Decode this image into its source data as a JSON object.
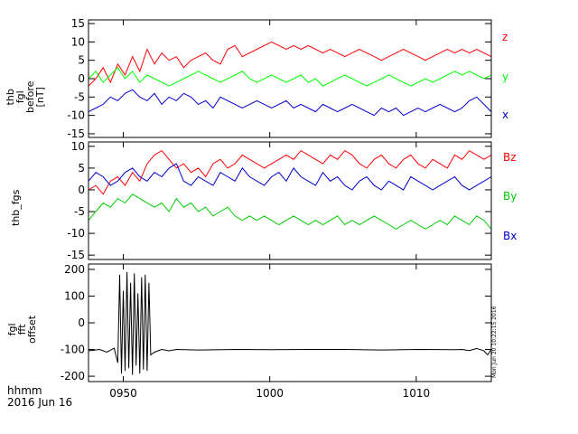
{
  "chart_data": [
    {
      "type": "line",
      "ylabel_lines": [
        "thb",
        "fgl",
        "before",
        "[nT]"
      ],
      "xlim": [
        0,
        110
      ],
      "ylim": [
        -16,
        16
      ],
      "yticks": [
        -15,
        -10,
        -5,
        0,
        5,
        10,
        15
      ],
      "series": [
        {
          "name": "z",
          "color": "#ff0000",
          "x": [
            0,
            2,
            4,
            6,
            8,
            10,
            12,
            14,
            16,
            18,
            20,
            22,
            24,
            26,
            28,
            30,
            32,
            34,
            36,
            38,
            40,
            42,
            44,
            46,
            48,
            50,
            52,
            54,
            56,
            58,
            60,
            62,
            64,
            66,
            68,
            70,
            72,
            74,
            76,
            78,
            80,
            82,
            84,
            86,
            88,
            90,
            92,
            94,
            96,
            98,
            100,
            102,
            104,
            106,
            108,
            110
          ],
          "values": [
            -2,
            0,
            3,
            -1,
            4,
            1,
            6,
            2,
            8,
            4,
            7,
            5,
            6,
            3,
            5,
            6,
            7,
            5,
            4,
            8,
            9,
            6,
            7,
            8,
            9,
            10,
            9,
            8,
            9,
            8,
            9,
            8,
            7,
            8,
            7,
            6,
            7,
            8,
            7,
            6,
            5,
            6,
            7,
            8,
            7,
            6,
            5,
            6,
            7,
            8,
            7,
            8,
            7,
            8,
            7,
            6
          ]
        },
        {
          "name": "y",
          "color": "#00ff00",
          "x": [
            0,
            2,
            4,
            6,
            8,
            10,
            12,
            14,
            16,
            18,
            20,
            22,
            24,
            26,
            28,
            30,
            32,
            34,
            36,
            38,
            40,
            42,
            44,
            46,
            48,
            50,
            52,
            54,
            56,
            58,
            60,
            62,
            64,
            66,
            68,
            70,
            72,
            74,
            76,
            78,
            80,
            82,
            84,
            86,
            88,
            90,
            92,
            94,
            96,
            98,
            100,
            102,
            104,
            106,
            108,
            110
          ],
          "values": [
            0,
            2,
            -1,
            1,
            3,
            0,
            2,
            -1,
            1,
            0,
            -1,
            -2,
            -1,
            0,
            1,
            2,
            1,
            0,
            -1,
            0,
            1,
            2,
            0,
            -1,
            0,
            1,
            0,
            -1,
            0,
            1,
            -1,
            0,
            -2,
            -1,
            0,
            1,
            0,
            -1,
            -2,
            -1,
            0,
            1,
            0,
            -1,
            -2,
            -1,
            0,
            -1,
            0,
            1,
            2,
            1,
            2,
            1,
            0,
            1
          ]
        },
        {
          "name": "x",
          "color": "#0000cc",
          "x": [
            0,
            2,
            4,
            6,
            8,
            10,
            12,
            14,
            16,
            18,
            20,
            22,
            24,
            26,
            28,
            30,
            32,
            34,
            36,
            38,
            40,
            42,
            44,
            46,
            48,
            50,
            52,
            54,
            56,
            58,
            60,
            62,
            64,
            66,
            68,
            70,
            72,
            74,
            76,
            78,
            80,
            82,
            84,
            86,
            88,
            90,
            92,
            94,
            96,
            98,
            100,
            102,
            104,
            106,
            108,
            110
          ],
          "values": [
            -9,
            -8,
            -7,
            -5,
            -6,
            -4,
            -3,
            -5,
            -6,
            -4,
            -7,
            -5,
            -6,
            -4,
            -5,
            -7,
            -6,
            -8,
            -5,
            -6,
            -7,
            -8,
            -7,
            -6,
            -7,
            -8,
            -7,
            -6,
            -8,
            -7,
            -8,
            -9,
            -7,
            -8,
            -9,
            -8,
            -7,
            -8,
            -9,
            -10,
            -8,
            -9,
            -8,
            -10,
            -9,
            -8,
            -9,
            -8,
            -7,
            -8,
            -9,
            -8,
            -6,
            -5,
            -7,
            -9
          ]
        }
      ]
    },
    {
      "type": "line",
      "ylabel_lines": [
        "thb_fgs"
      ],
      "xlim": [
        0,
        110
      ],
      "ylim": [
        -16,
        11
      ],
      "yticks": [
        -15,
        -10,
        -5,
        0,
        5,
        10
      ],
      "series": [
        {
          "name": "Bz",
          "color": "#ff0000",
          "x": [
            0,
            2,
            4,
            6,
            8,
            10,
            12,
            14,
            16,
            18,
            20,
            22,
            24,
            26,
            28,
            30,
            32,
            34,
            36,
            38,
            40,
            42,
            44,
            46,
            48,
            50,
            52,
            54,
            56,
            58,
            60,
            62,
            64,
            66,
            68,
            70,
            72,
            74,
            76,
            78,
            80,
            82,
            84,
            86,
            88,
            90,
            92,
            94,
            96,
            98,
            100,
            102,
            104,
            106,
            108,
            110
          ],
          "values": [
            0,
            1,
            -1,
            2,
            3,
            1,
            4,
            2,
            6,
            8,
            9,
            7,
            5,
            6,
            4,
            5,
            3,
            6,
            7,
            5,
            6,
            8,
            7,
            6,
            5,
            6,
            7,
            8,
            7,
            9,
            8,
            7,
            6,
            8,
            7,
            9,
            8,
            6,
            5,
            7,
            8,
            6,
            5,
            7,
            8,
            6,
            5,
            7,
            6,
            5,
            8,
            7,
            9,
            8,
            7,
            8
          ]
        },
        {
          "name": "By",
          "color": "#00cc00",
          "x": [
            0,
            2,
            4,
            6,
            8,
            10,
            12,
            14,
            16,
            18,
            20,
            22,
            24,
            26,
            28,
            30,
            32,
            34,
            36,
            38,
            40,
            42,
            44,
            46,
            48,
            50,
            52,
            54,
            56,
            58,
            60,
            62,
            64,
            66,
            68,
            70,
            72,
            74,
            76,
            78,
            80,
            82,
            84,
            86,
            88,
            90,
            92,
            94,
            96,
            98,
            100,
            102,
            104,
            106,
            108,
            110
          ],
          "values": [
            -7,
            -5,
            -3,
            -4,
            -2,
            -3,
            -1,
            -2,
            -3,
            -4,
            -3,
            -5,
            -2,
            -4,
            -3,
            -5,
            -4,
            -6,
            -5,
            -4,
            -6,
            -7,
            -6,
            -7,
            -6,
            -7,
            -8,
            -7,
            -6,
            -7,
            -8,
            -7,
            -8,
            -7,
            -6,
            -8,
            -7,
            -8,
            -7,
            -6,
            -7,
            -8,
            -9,
            -8,
            -7,
            -8,
            -9,
            -8,
            -7,
            -8,
            -6,
            -7,
            -8,
            -6,
            -7,
            -9
          ]
        },
        {
          "name": "Bx",
          "color": "#0000cc",
          "x": [
            0,
            2,
            4,
            6,
            8,
            10,
            12,
            14,
            16,
            18,
            20,
            22,
            24,
            26,
            28,
            30,
            32,
            34,
            36,
            38,
            40,
            42,
            44,
            46,
            48,
            50,
            52,
            54,
            56,
            58,
            60,
            62,
            64,
            66,
            68,
            70,
            72,
            74,
            76,
            78,
            80,
            82,
            84,
            86,
            88,
            90,
            92,
            94,
            96,
            98,
            100,
            102,
            104,
            106,
            108,
            110
          ],
          "values": [
            2,
            4,
            3,
            1,
            2,
            4,
            5,
            3,
            2,
            4,
            3,
            5,
            6,
            2,
            1,
            3,
            2,
            1,
            4,
            3,
            2,
            5,
            3,
            2,
            1,
            3,
            4,
            2,
            5,
            3,
            2,
            1,
            4,
            2,
            3,
            1,
            0,
            2,
            3,
            1,
            0,
            2,
            1,
            0,
            3,
            2,
            1,
            0,
            1,
            2,
            3,
            1,
            0,
            1,
            2,
            3
          ]
        }
      ]
    },
    {
      "type": "line",
      "ylabel_lines": [
        "fgl",
        "fft",
        "offset"
      ],
      "xlim": [
        0,
        110
      ],
      "ylim": [
        -220,
        220
      ],
      "yticks": [
        -200,
        -100,
        0,
        100,
        200
      ],
      "series": [
        {
          "name": "offset",
          "color": "#000000",
          "x": [
            0,
            3,
            5,
            7,
            8,
            8.5,
            9,
            9.5,
            10,
            10.5,
            11,
            11.5,
            12,
            12.5,
            13,
            13.5,
            14,
            14.5,
            15,
            15.5,
            16,
            16.5,
            17,
            18,
            20,
            22,
            24,
            30,
            40,
            50,
            60,
            70,
            80,
            90,
            100,
            102,
            104,
            106,
            108,
            109,
            110
          ],
          "values": [
            -105,
            -100,
            -110,
            -95,
            -150,
            180,
            -190,
            120,
            -180,
            190,
            -170,
            150,
            -195,
            185,
            -160,
            110,
            -190,
            170,
            -175,
            180,
            -180,
            150,
            -120,
            -110,
            -100,
            -105,
            -100,
            -102,
            -100,
            -101,
            -100,
            -100,
            -102,
            -100,
            -101,
            -100,
            -104,
            -96,
            -105,
            -120,
            -100
          ]
        }
      ]
    }
  ],
  "xaxis": {
    "tick_values": [
      9.5,
      49.5,
      89.5
    ],
    "tick_labels": [
      "0950",
      "1000",
      "1010"
    ],
    "label": "hhmm",
    "date": "2016 Jun 16"
  },
  "stamp": "Mon Jun 20 10:22:15 2016"
}
